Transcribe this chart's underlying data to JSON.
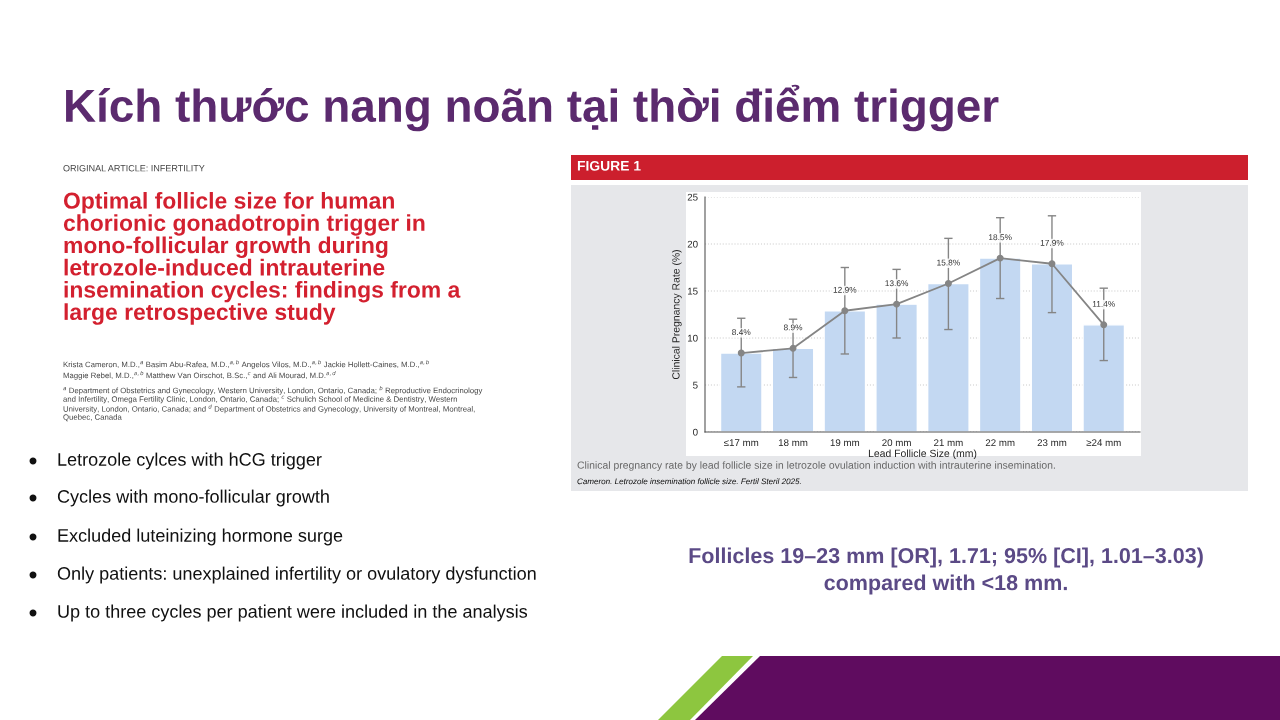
{
  "chart_data": {
    "type": "bar",
    "title": "Kích thước nang noãn tại thời điểm trigger",
    "xlabel": "Lead Follicle Size (mm)",
    "ylabel": "Clinical Pregnancy Rate (%)",
    "categories": [
      "≤17 mm",
      "18 mm",
      "19 mm",
      "20 mm",
      "21 mm",
      "22 mm",
      "23 mm",
      "≥24 mm"
    ],
    "series": [
      {
        "color": "#c3d8f2",
        "values": [
          8.4,
          8.9,
          12.9,
          13.6,
          15.8,
          18.5,
          17.9,
          11.4
        ]
      },
      {
        "type": "line",
        "color": "#858585",
        "marker": "circle",
        "line_style": "solid",
        "values": [
          8.4,
          8.9,
          12.9,
          13.6,
          15.8,
          18.5,
          17.9,
          11.4
        ],
        "errors": [
          [
            4.8,
            12.1
          ],
          [
            5.8,
            12.0
          ],
          [
            8.3,
            17.5
          ],
          [
            10.0,
            17.3
          ],
          [
            10.9,
            20.6
          ],
          [
            14.2,
            22.8
          ],
          [
            12.7,
            23.0
          ],
          [
            7.6,
            15.3
          ]
        ],
        "value_labels": [
          "8.4%",
          "8.9%",
          "12.9%",
          "13.6%",
          "15.8%",
          "18.5%",
          "17.9%",
          "11.4%"
        ]
      }
    ],
    "ylim": [
      0,
      25
    ],
    "yticks": [
      0,
      5,
      10,
      15,
      20,
      25
    ],
    "grid": "y",
    "legend": false,
    "annotations": [
      "ORIGINAL ARTICLE: INFERTILITY",
      "Optimal follicle size for human\nchorionic gonadotropin trigger in\nmono-follicular growth during\nletrozole-induced intrauterine\ninsemination cycles: findings from a\nlarge retrospective study",
      "Krista Cameron, M.D.,$^{a}$ Basim Abu-Rafea, M.D.,$^{a,b}$ Angelos Vilos, M.D.,$^{a,b}$ Jackie Hollett-Caines, M.D.,$^{a,b}$\nMaggie Rebel, M.D.,$^{a,b}$ Matthew Van Oirschot, B.Sc.,$^{c}$ and Ali Mourad, M.D.$^{a,d}$",
      "$^{a}$ Department of Obstetrics and Gynecology, Western University, London, Ontario, Canada; $^{b}$ Reproductive Endocrinology\nand Infertility, Omega Fertility Clinic, London, Ontario, Canada; $^{c}$ Schulich School of Medicine & Dentistry, Western\nUniversity, London, Ontario, Canada; and $^{d}$ Department of Obstetrics and Gynecology, University of Montreal, Montreal,\nQuebec, Canada",
      "Letrozole cylces with hCG trigger",
      "Cycles with mono-follicular growth",
      "Excluded luteinizing hormone surge",
      "Only patients: unexplained infertility or ovulatory dysfunction",
      "Up to three cycles per patient were included in the analysis",
      "FIGURE 1",
      "Clinical pregnancy rate by lead follicle size in letrozole ovulation induction with intrauterine insemination.",
      "Cameron. Letrozole insemination follicle size. Fertil Steril 2025.",
      "Follicles 19–23 mm [OR], 1.71; 95% [CI], 1.01–3.03)\ncompared with <18 mm."
    ]
  }
}
